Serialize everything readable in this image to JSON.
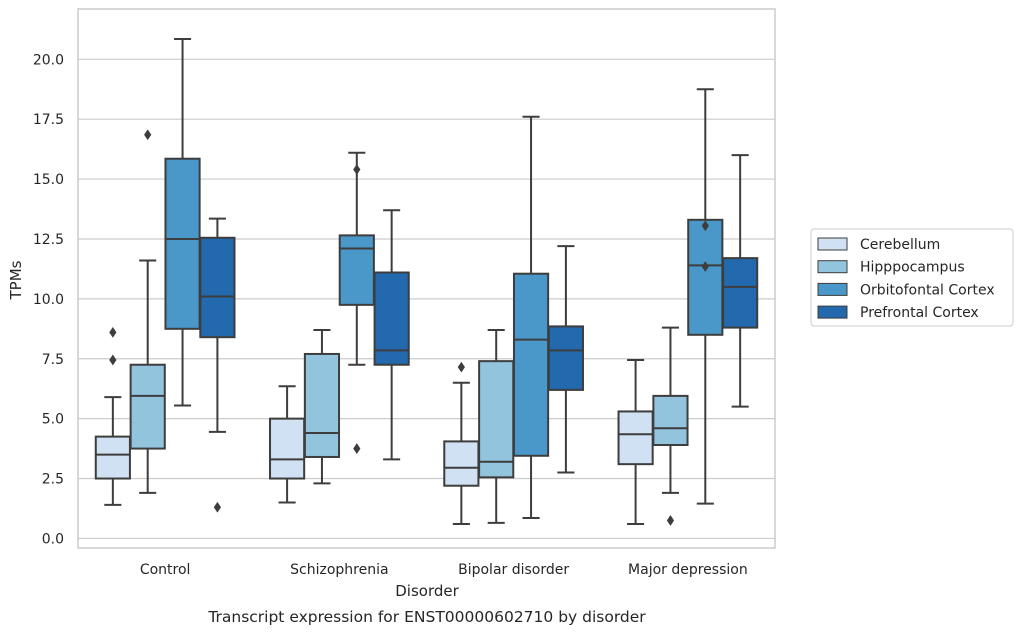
{
  "chart_data": {
    "type": "boxplot",
    "caption": "Transcript expression for ENST00000602710 by disorder",
    "xlabel": "Disorder",
    "ylabel": "TPMs",
    "ylim": [
      -0.4,
      22.1
    ],
    "yticks": [
      0.0,
      2.5,
      5.0,
      7.5,
      10.0,
      12.5,
      15.0,
      17.5,
      20.0
    ],
    "ytick_labels": [
      "0.0",
      "2.5",
      "5.0",
      "7.5",
      "10.0",
      "12.5",
      "15.0",
      "17.5",
      "20.0"
    ],
    "grid": "horizontal",
    "legend_position": "right",
    "categories": [
      "Control",
      "Schizophrenia",
      "Bipolar disorder",
      "Major depression"
    ],
    "series": [
      {
        "name": "Cerebellum",
        "color": "#cfe1f2",
        "boxes": [
          {
            "whisker_low": 1.4,
            "q1": 2.5,
            "median": 3.5,
            "q3": 4.25,
            "whisker_high": 5.9,
            "outliers": [
              7.45,
              8.6
            ]
          },
          {
            "whisker_low": 1.5,
            "q1": 2.5,
            "median": 3.3,
            "q3": 5.0,
            "whisker_high": 6.35,
            "outliers": []
          },
          {
            "whisker_low": 0.6,
            "q1": 2.2,
            "median": 2.95,
            "q3": 4.05,
            "whisker_high": 6.5,
            "outliers": [
              7.15
            ]
          },
          {
            "whisker_low": 0.6,
            "q1": 3.1,
            "median": 4.35,
            "q3": 5.3,
            "whisker_high": 7.45,
            "outliers": []
          }
        ]
      },
      {
        "name": "Hipppocampus",
        "color": "#93c4de",
        "boxes": [
          {
            "whisker_low": 1.9,
            "q1": 3.75,
            "median": 5.95,
            "q3": 7.25,
            "whisker_high": 11.6,
            "outliers": [
              16.85
            ]
          },
          {
            "whisker_low": 2.3,
            "q1": 3.4,
            "median": 4.4,
            "q3": 7.7,
            "whisker_high": 8.7,
            "outliers": []
          },
          {
            "whisker_low": 0.65,
            "q1": 2.55,
            "median": 3.2,
            "q3": 7.4,
            "whisker_high": 8.7,
            "outliers": []
          },
          {
            "whisker_low": 1.9,
            "q1": 3.9,
            "median": 4.6,
            "q3": 5.95,
            "whisker_high": 8.8,
            "outliers": [
              0.75
            ]
          }
        ]
      },
      {
        "name": "Orbitofontal Cortex",
        "color": "#4a98c9",
        "boxes": [
          {
            "whisker_low": 5.55,
            "q1": 8.75,
            "median": 12.5,
            "q3": 15.85,
            "whisker_high": 20.85,
            "outliers": []
          },
          {
            "whisker_low": 7.25,
            "q1": 9.75,
            "median": 12.1,
            "q3": 12.65,
            "whisker_high": 16.1,
            "outliers": [
              15.4,
              3.75
            ]
          },
          {
            "whisker_low": 0.85,
            "q1": 3.45,
            "median": 8.3,
            "q3": 11.05,
            "whisker_high": 17.6,
            "outliers": []
          },
          {
            "whisker_low": 1.45,
            "q1": 8.5,
            "median": 11.4,
            "q3": 13.3,
            "whisker_high": 18.75,
            "outliers": [
              11.35,
              13.05
            ]
          }
        ]
      },
      {
        "name": "Prefrontal Cortex",
        "color": "#2369ad",
        "boxes": [
          {
            "whisker_low": 4.45,
            "q1": 8.4,
            "median": 10.1,
            "q3": 12.55,
            "whisker_high": 13.35,
            "outliers": [
              1.3
            ]
          },
          {
            "whisker_low": 3.3,
            "q1": 7.25,
            "median": 7.85,
            "q3": 11.1,
            "whisker_high": 13.7,
            "outliers": []
          },
          {
            "whisker_low": 2.75,
            "q1": 6.2,
            "median": 7.85,
            "q3": 8.85,
            "whisker_high": 12.2,
            "outliers": []
          },
          {
            "whisker_low": 5.5,
            "q1": 8.8,
            "median": 10.5,
            "q3": 11.7,
            "whisker_high": 16.0,
            "outliers": []
          }
        ]
      }
    ]
  }
}
